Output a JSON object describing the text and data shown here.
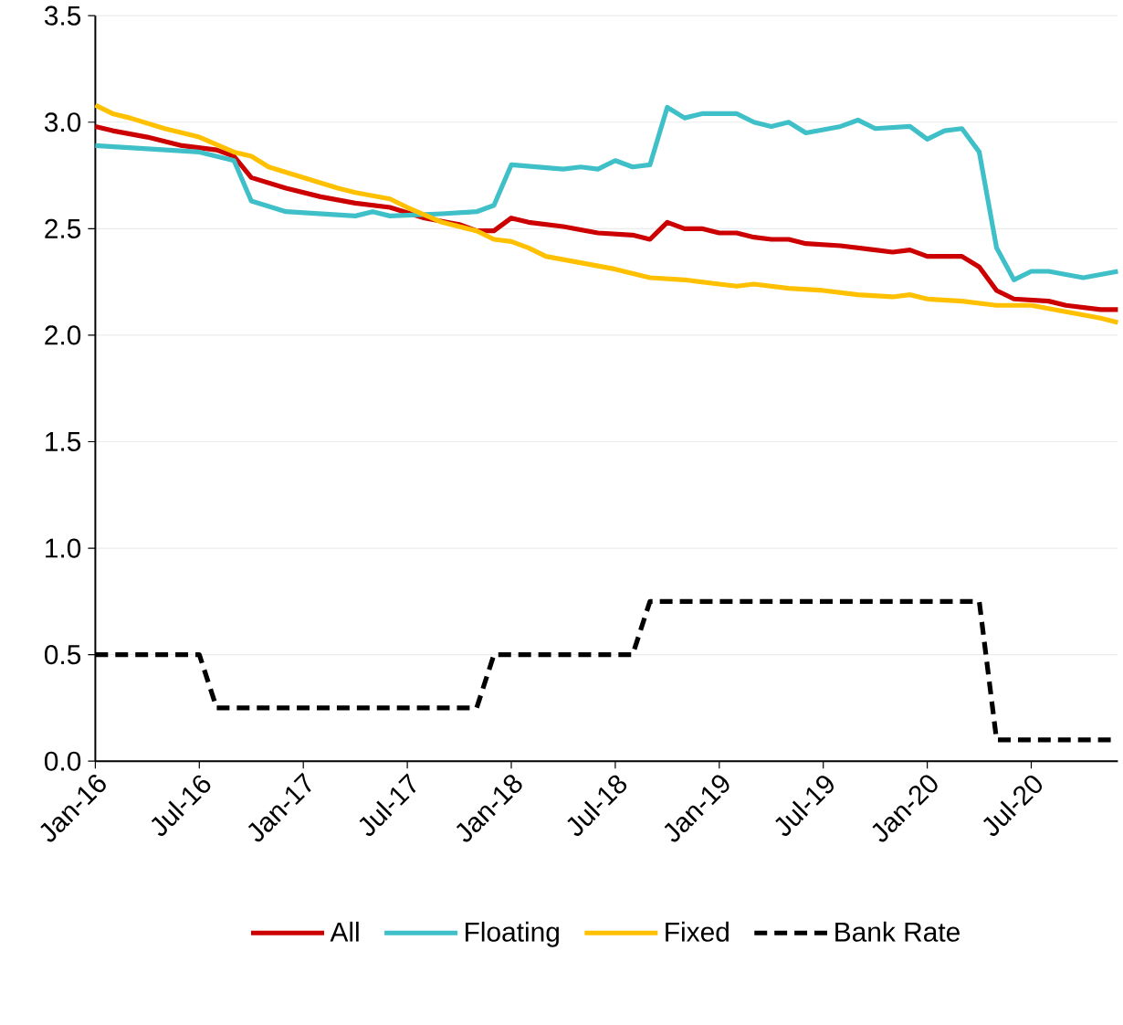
{
  "chart_data": {
    "type": "line",
    "xlim": [
      "2016-01",
      "2020-12"
    ],
    "ylim": [
      0,
      3.5
    ],
    "xticks": [
      {
        "value": "2016-01",
        "label": "Jan-16"
      },
      {
        "value": "2016-07",
        "label": "Jul-16"
      },
      {
        "value": "2017-01",
        "label": "Jan-17"
      },
      {
        "value": "2017-07",
        "label": "Jul-17"
      },
      {
        "value": "2018-01",
        "label": "Jan-18"
      },
      {
        "value": "2018-07",
        "label": "Jul-18"
      },
      {
        "value": "2019-01",
        "label": "Jan-19"
      },
      {
        "value": "2019-07",
        "label": "Jul-19"
      },
      {
        "value": "2020-01",
        "label": "Jan-20"
      },
      {
        "value": "2020-07",
        "label": "Jul-20"
      }
    ],
    "yticks": [
      {
        "value": 0,
        "label": "0.0"
      },
      {
        "value": 0.5,
        "label": "0.5"
      },
      {
        "value": 1,
        "label": "1.0"
      },
      {
        "value": 1.5,
        "label": "1.5"
      },
      {
        "value": 2,
        "label": "2.0"
      },
      {
        "value": 2.5,
        "label": "2.5"
      },
      {
        "value": 3,
        "label": "3.0"
      },
      {
        "value": 3.5,
        "label": "3.5"
      }
    ],
    "grid": "y",
    "legend": "bottom",
    "marker": "none",
    "series": [
      {
        "name": "All",
        "color": "#cc0000",
        "line_style": "solid",
        "x": [
          "2016-01",
          "2016-02",
          "2016-04",
          "2016-06",
          "2016-08",
          "2016-09",
          "2016-10",
          "2016-12",
          "2017-01",
          "2017-02",
          "2017-04",
          "2017-06",
          "2017-08",
          "2017-10",
          "2017-11",
          "2017-12",
          "2018-01",
          "2018-02",
          "2018-04",
          "2018-06",
          "2018-08",
          "2018-09",
          "2018-10",
          "2018-11",
          "2018-12",
          "2019-01",
          "2019-02",
          "2019-03",
          "2019-04",
          "2019-05",
          "2019-06",
          "2019-08",
          "2019-10",
          "2019-11",
          "2019-12",
          "2020-01",
          "2020-03",
          "2020-04",
          "2020-05",
          "2020-06",
          "2020-08",
          "2020-09",
          "2020-11",
          "2020-12"
        ],
        "values": [
          2.98,
          2.96,
          2.93,
          2.89,
          2.87,
          2.84,
          2.74,
          2.69,
          2.67,
          2.65,
          2.62,
          2.6,
          2.55,
          2.52,
          2.49,
          2.49,
          2.55,
          2.53,
          2.51,
          2.48,
          2.47,
          2.45,
          2.53,
          2.5,
          2.5,
          2.48,
          2.48,
          2.46,
          2.45,
          2.45,
          2.43,
          2.42,
          2.4,
          2.39,
          2.4,
          2.37,
          2.37,
          2.32,
          2.21,
          2.17,
          2.16,
          2.14,
          2.12,
          2.12
        ]
      },
      {
        "name": "Floating",
        "color": "#3fc0c8",
        "line_style": "solid",
        "x": [
          "2016-01",
          "2016-07",
          "2016-08",
          "2016-09",
          "2016-10",
          "2016-12",
          "2017-04",
          "2017-05",
          "2017-06",
          "2017-09",
          "2017-11",
          "2017-12",
          "2018-01",
          "2018-04",
          "2018-05",
          "2018-06",
          "2018-07",
          "2018-08",
          "2018-09",
          "2018-10",
          "2018-11",
          "2018-12",
          "2019-02",
          "2019-03",
          "2019-04",
          "2019-05",
          "2019-06",
          "2019-08",
          "2019-09",
          "2019-10",
          "2019-12",
          "2020-01",
          "2020-02",
          "2020-03",
          "2020-04",
          "2020-05",
          "2020-06",
          "2020-07",
          "2020-08",
          "2020-10",
          "2020-12"
        ],
        "values": [
          2.89,
          2.86,
          2.84,
          2.82,
          2.63,
          2.58,
          2.56,
          2.58,
          2.56,
          2.57,
          2.58,
          2.61,
          2.8,
          2.78,
          2.79,
          2.78,
          2.82,
          2.79,
          2.8,
          3.07,
          3.02,
          3.04,
          3.04,
          3.0,
          2.98,
          3.0,
          2.95,
          2.98,
          3.01,
          2.97,
          2.98,
          2.92,
          2.96,
          2.97,
          2.86,
          2.41,
          2.26,
          2.3,
          2.3,
          2.27,
          2.3
        ]
      },
      {
        "name": "Fixed",
        "color": "#ffc000",
        "line_style": "solid",
        "x": [
          "2016-01",
          "2016-02",
          "2016-03",
          "2016-05",
          "2016-07",
          "2016-09",
          "2016-10",
          "2016-11",
          "2017-01",
          "2017-03",
          "2017-04",
          "2017-06",
          "2017-07",
          "2017-09",
          "2017-11",
          "2017-12",
          "2018-01",
          "2018-02",
          "2018-03",
          "2018-05",
          "2018-07",
          "2018-09",
          "2018-11",
          "2019-01",
          "2019-02",
          "2019-03",
          "2019-05",
          "2019-07",
          "2019-09",
          "2019-11",
          "2019-12",
          "2020-01",
          "2020-03",
          "2020-05",
          "2020-07",
          "2020-09",
          "2020-11",
          "2020-12"
        ],
        "values": [
          3.08,
          3.04,
          3.02,
          2.97,
          2.93,
          2.86,
          2.84,
          2.79,
          2.74,
          2.69,
          2.67,
          2.64,
          2.6,
          2.53,
          2.49,
          2.45,
          2.44,
          2.41,
          2.37,
          2.34,
          2.31,
          2.27,
          2.26,
          2.24,
          2.23,
          2.24,
          2.22,
          2.21,
          2.19,
          2.18,
          2.19,
          2.17,
          2.16,
          2.14,
          2.14,
          2.11,
          2.08,
          2.06
        ]
      },
      {
        "name": "Bank Rate",
        "color": "#000000",
        "line_style": "dashed",
        "x": [
          "2016-01",
          "2016-07",
          "2016-08",
          "2017-11",
          "2017-12",
          "2018-08",
          "2018-09",
          "2020-04",
          "2020-05",
          "2020-12"
        ],
        "values": [
          0.5,
          0.5,
          0.25,
          0.25,
          0.5,
          0.5,
          0.75,
          0.75,
          0.1,
          0.1
        ]
      }
    ]
  }
}
